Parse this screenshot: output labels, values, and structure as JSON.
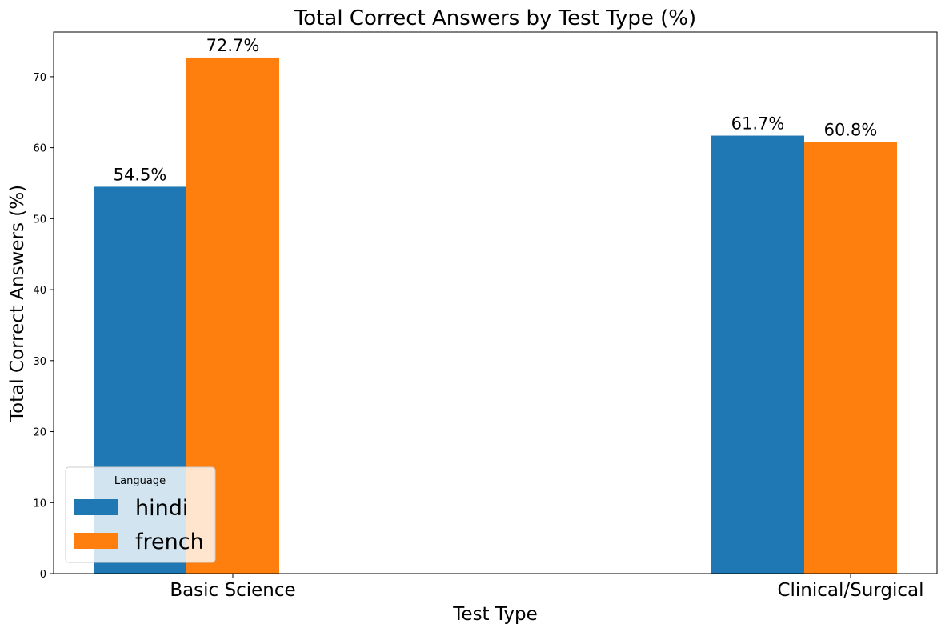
{
  "chart_data": {
    "type": "bar",
    "title": "Total Correct Answers by Test Type (%)",
    "xlabel": "Test Type",
    "ylabel": "Total Correct Answers (%)",
    "categories": [
      "Basic Science",
      "Clinical/Surgical"
    ],
    "series": [
      {
        "name": "hindi",
        "values": [
          54.5,
          61.7
        ],
        "labels": [
          "54.5%",
          "61.7%"
        ],
        "color": "#1f77b4"
      },
      {
        "name": "french",
        "values": [
          72.7,
          60.8
        ],
        "labels": [
          "72.7%",
          "60.8%"
        ],
        "color": "#ff7f0e"
      }
    ],
    "ylim": [
      0,
      76.3
    ],
    "yticks": [
      "0",
      "10",
      "20",
      "30",
      "40",
      "50",
      "60",
      "70"
    ],
    "grid": false,
    "legend": {
      "title": "Language",
      "placement": "lower-left"
    }
  }
}
